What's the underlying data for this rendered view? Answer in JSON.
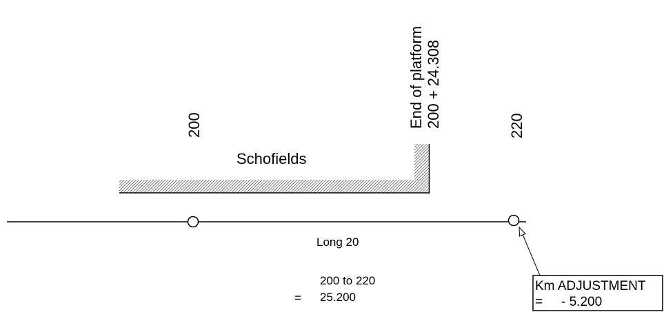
{
  "station": {
    "name": "Schofields"
  },
  "chainage": {
    "mark_200": "200",
    "mark_220": "220"
  },
  "end_of_platform": {
    "line1": "End of platform",
    "line2": "200 + 24.308"
  },
  "track": {
    "label": "Long 20"
  },
  "distance": {
    "range": "200 to 220",
    "equals": "=",
    "value": "25.200"
  },
  "km_adjustment": {
    "title": "Km ADJUSTMENT",
    "equals": "=",
    "value": "- 5.200"
  },
  "colors": {
    "line": "#000000",
    "background": "#ffffff",
    "hatch": "#000000"
  }
}
